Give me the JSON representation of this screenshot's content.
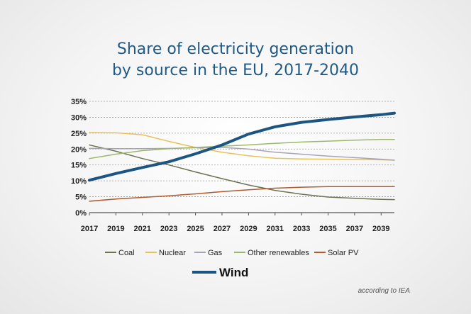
{
  "chart_data": {
    "type": "line",
    "title_lines": [
      "Share of electricity generation",
      "by source in the EU, 2017-2040"
    ],
    "x": [
      2017,
      2019,
      2021,
      2023,
      2025,
      2027,
      2029,
      2031,
      2033,
      2035,
      2037,
      2039,
      2040
    ],
    "x_ticks": [
      "2017",
      "2019",
      "2021",
      "2023",
      "2025",
      "2027",
      "2029",
      "2031",
      "2033",
      "2035",
      "2037",
      "2039"
    ],
    "y_ticks": [
      "0%",
      "5%",
      "10%",
      "15%",
      "20%",
      "25%",
      "30%",
      "35%"
    ],
    "ylim": [
      0,
      35
    ],
    "xlim": [
      2017,
      2040
    ],
    "grid": true,
    "series": [
      {
        "name": "Coal",
        "color": "#6b7350",
        "width": 1.5,
        "values": [
          21.3,
          19.3,
          17.0,
          15.0,
          12.8,
          10.7,
          8.7,
          7.0,
          5.8,
          4.9,
          4.5,
          4.2,
          4.1
        ]
      },
      {
        "name": "Nuclear",
        "color": "#e8c258",
        "width": 1.5,
        "values": [
          25.2,
          25.1,
          24.5,
          22.4,
          20.5,
          19.0,
          17.9,
          17.1,
          16.9,
          16.8,
          16.7,
          16.6,
          16.5
        ]
      },
      {
        "name": "Gas",
        "color": "#a8a3b8",
        "width": 1.5,
        "values": [
          20.2,
          20.1,
          20.1,
          20.2,
          20.4,
          20.5,
          20.0,
          19.0,
          18.4,
          17.8,
          17.3,
          16.8,
          16.5
        ]
      },
      {
        "name": "Other renewables",
        "color": "#9cb86a",
        "width": 1.5,
        "values": [
          17.0,
          18.4,
          19.5,
          20.1,
          20.5,
          20.9,
          21.3,
          21.8,
          22.2,
          22.5,
          22.8,
          23.0,
          23.0
        ]
      },
      {
        "name": "Solar PV",
        "color": "#b05a2e",
        "width": 1.5,
        "values": [
          3.6,
          4.3,
          4.8,
          5.3,
          5.9,
          6.6,
          7.2,
          7.7,
          8.0,
          8.2,
          8.2,
          8.2,
          8.2
        ]
      },
      {
        "name": "Wind",
        "color": "#1c5582",
        "width": 4,
        "values": [
          10.2,
          12.3,
          14.2,
          16.0,
          18.5,
          21.3,
          24.7,
          27.0,
          28.4,
          29.3,
          30.1,
          30.8,
          31.3
        ]
      }
    ],
    "legend": [
      {
        "name": "Coal",
        "color": "#6b7350"
      },
      {
        "name": "Nuclear",
        "color": "#e8c258"
      },
      {
        "name": "Gas",
        "color": "#a8a3b8"
      },
      {
        "name": "Other renewables",
        "color": "#9cb86a"
      },
      {
        "name": "Solar PV",
        "color": "#b05a2e"
      }
    ],
    "legend_main": {
      "name": "Wind",
      "color": "#1c5582"
    },
    "source_note": "according to IEA"
  }
}
